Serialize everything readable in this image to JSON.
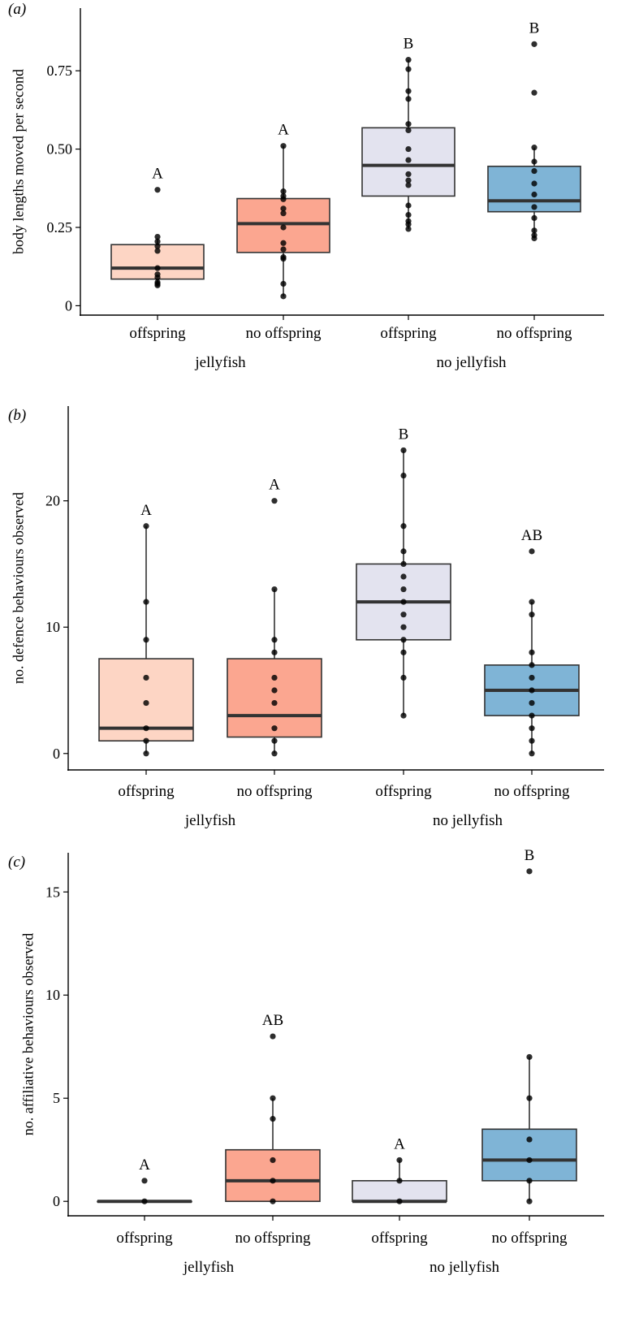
{
  "chart_data": [
    {
      "panel_label": "(a)",
      "type": "box",
      "ylabel": "body lengths moved per second",
      "ylim": [
        -0.03,
        0.95
      ],
      "yticks": [
        0,
        0.25,
        0.5,
        0.75
      ],
      "ytick_labels": [
        "0",
        "0.25",
        "0.50",
        "0.75"
      ],
      "categories": [
        "offspring",
        "no offspring",
        "offspring",
        "no offspring"
      ],
      "groups": [
        "jellyfish",
        "no jellyfish"
      ],
      "colors": [
        "#fdd5c4",
        "#fba690",
        "#e3e3ef",
        "#7fb4d6"
      ],
      "boxes": [
        {
          "q1": 0.085,
          "median": 0.12,
          "q3": 0.195,
          "lower": 0.065,
          "upper": 0.215,
          "letter": "A",
          "points": [
            0.37,
            0.22,
            0.205,
            0.19,
            0.175,
            0.12,
            0.1,
            0.09,
            0.075,
            0.07,
            0.065
          ]
        },
        {
          "q1": 0.17,
          "median": 0.262,
          "q3": 0.342,
          "lower": 0.03,
          "upper": 0.51,
          "letter": "A",
          "points": [
            0.51,
            0.365,
            0.35,
            0.34,
            0.31,
            0.295,
            0.25,
            0.2,
            0.18,
            0.155,
            0.15,
            0.07,
            0.03
          ]
        },
        {
          "q1": 0.35,
          "median": 0.448,
          "q3": 0.568,
          "lower": 0.245,
          "upper": 0.785,
          "letter": "B",
          "points": [
            0.785,
            0.755,
            0.685,
            0.66,
            0.58,
            0.56,
            0.5,
            0.465,
            0.42,
            0.4,
            0.385,
            0.32,
            0.29,
            0.27,
            0.26,
            0.245
          ]
        },
        {
          "q1": 0.3,
          "median": 0.335,
          "q3": 0.445,
          "lower": 0.215,
          "upper": 0.505,
          "letter": "B",
          "points": [
            0.835,
            0.68,
            0.505,
            0.46,
            0.43,
            0.39,
            0.355,
            0.315,
            0.28,
            0.24,
            0.225,
            0.215
          ]
        }
      ]
    },
    {
      "panel_label": "(b)",
      "type": "box",
      "ylabel": "no. defence behaviours observed",
      "ylim": [
        -1.3,
        27.5
      ],
      "yticks": [
        0,
        10,
        20
      ],
      "ytick_labels": [
        "0",
        "10",
        "20"
      ],
      "categories": [
        "offspring",
        "no offspring",
        "offspring",
        "no offspring"
      ],
      "groups": [
        "jellyfish",
        "no jellyfish"
      ],
      "colors": [
        "#fdd5c4",
        "#fba690",
        "#e3e3ef",
        "#7fb4d6"
      ],
      "boxes": [
        {
          "q1": 1,
          "median": 2,
          "q3": 7.5,
          "lower": 0,
          "upper": 18,
          "letter": "A",
          "points": [
            18,
            12,
            9,
            6,
            4,
            2,
            1,
            0
          ]
        },
        {
          "q1": 1.3,
          "median": 3,
          "q3": 7.5,
          "lower": 0,
          "upper": 13,
          "letter": "A",
          "points": [
            20,
            13,
            9,
            8,
            6,
            5,
            4,
            2,
            1,
            0
          ]
        },
        {
          "q1": 9,
          "median": 12,
          "q3": 15,
          "lower": 3,
          "upper": 24,
          "letter": "B",
          "points": [
            24,
            22,
            18,
            16,
            15,
            14,
            13,
            12,
            11,
            10,
            9,
            8,
            6,
            3
          ]
        },
        {
          "q1": 3,
          "median": 5,
          "q3": 7,
          "lower": 0,
          "upper": 12,
          "letter": "AB",
          "points": [
            16,
            12,
            11,
            8,
            7,
            6,
            5,
            4,
            3,
            2,
            1,
            0
          ]
        }
      ]
    },
    {
      "panel_label": "(c)",
      "type": "box",
      "ylabel": "no. affiliative behaviours observed",
      "ylim": [
        -0.7,
        16.9
      ],
      "yticks": [
        0,
        5,
        10,
        15
      ],
      "ytick_labels": [
        "0",
        "5",
        "10",
        "15"
      ],
      "categories": [
        "offspring",
        "no offspring",
        "offspring",
        "no offspring"
      ],
      "groups": [
        "jellyfish",
        "no jellyfish"
      ],
      "colors": [
        "#fdd5c4",
        "#fba690",
        "#e3e3ef",
        "#7fb4d6"
      ],
      "boxes": [
        {
          "q1": 0,
          "median": 0,
          "q3": 0,
          "lower": 0,
          "upper": 0,
          "letter": "A",
          "points": [
            1,
            0
          ]
        },
        {
          "q1": 0,
          "median": 1,
          "q3": 2.5,
          "lower": 0,
          "upper": 5,
          "letter": "AB",
          "points": [
            8,
            5,
            4,
            2,
            1,
            0
          ]
        },
        {
          "q1": 0,
          "median": 0,
          "q3": 1,
          "lower": 0,
          "upper": 2,
          "letter": "A",
          "points": [
            2,
            1,
            0
          ]
        },
        {
          "q1": 1,
          "median": 2,
          "q3": 3.5,
          "lower": 0,
          "upper": 7,
          "letter": "B",
          "points": [
            16,
            7,
            5,
            3,
            2,
            1,
            0
          ]
        }
      ]
    }
  ]
}
